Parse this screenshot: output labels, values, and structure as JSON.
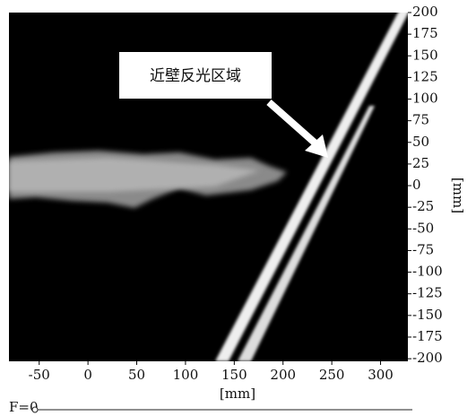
{
  "chart_data": {
    "type": "image",
    "annotation": "近壁反光区域",
    "x_label": "[mm]",
    "y_label": "[mm]",
    "xlim": [
      -81,
      328
    ],
    "ylim": [
      -203,
      200
    ],
    "xticks": [
      -50,
      0,
      50,
      100,
      150,
      200,
      250,
      300
    ],
    "yticks": [
      -200,
      -175,
      -150,
      -125,
      -100,
      -75,
      -50,
      -25,
      0,
      25,
      50,
      75,
      100,
      125,
      150,
      175,
      200
    ],
    "footer": "F=0"
  }
}
